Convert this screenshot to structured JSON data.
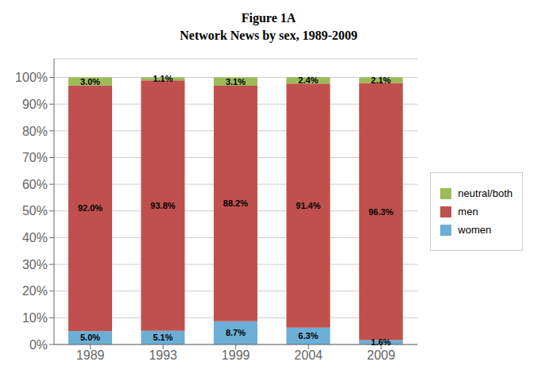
{
  "chart_data": {
    "type": "bar",
    "title": "Figure 1A",
    "subtitle": "Network News by sex, 1989-2009",
    "categories": [
      "1989",
      "1993",
      "1999",
      "2004",
      "2009"
    ],
    "stacked": true,
    "data_labels": true,
    "grid": true,
    "legend": "right",
    "ylim": [
      0,
      107
    ],
    "yticks": [
      {
        "value": 0,
        "label": "0%"
      },
      {
        "value": 10,
        "label": "10%"
      },
      {
        "value": 20,
        "label": "20%"
      },
      {
        "value": 30,
        "label": "30%"
      },
      {
        "value": 40,
        "label": "40%"
      },
      {
        "value": 50,
        "label": "50%"
      },
      {
        "value": 60,
        "label": "60%"
      },
      {
        "value": 70,
        "label": "70%"
      },
      {
        "value": 80,
        "label": "80%"
      },
      {
        "value": 90,
        "label": "90%"
      },
      {
        "value": 100,
        "label": "100%"
      }
    ],
    "series": [
      {
        "name": "women",
        "color": "#6baed6",
        "values": [
          5.0,
          5.1,
          8.7,
          6.3,
          1.6
        ],
        "value_labels": [
          "5.0%",
          "5.1%",
          "8.7%",
          "6.3%",
          "1.6%"
        ]
      },
      {
        "name": "men",
        "color": "#c0504d",
        "values": [
          92.0,
          93.8,
          88.2,
          91.4,
          96.3
        ],
        "value_labels": [
          "92.0%",
          "93.8%",
          "88.2%",
          "91.4%",
          "96.3%"
        ]
      },
      {
        "name": "neutral/both",
        "color": "#9bbb59",
        "values": [
          3.0,
          1.1,
          3.1,
          2.4,
          2.1
        ],
        "value_labels": [
          "3.0%",
          "1.1%",
          "3.1%",
          "2.4%",
          "2.1%"
        ]
      }
    ]
  }
}
